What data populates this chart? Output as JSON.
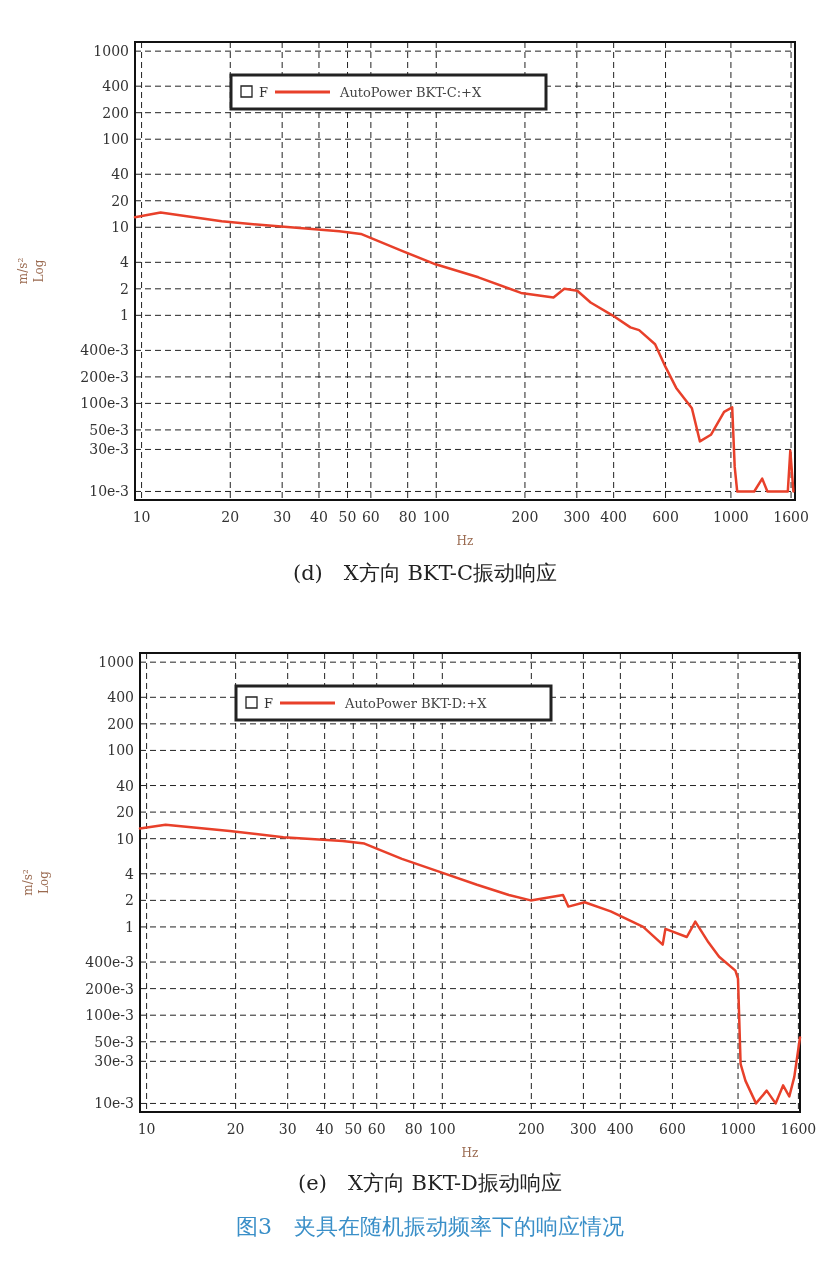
{
  "chart_data": [
    {
      "type": "line",
      "title": "(d)　X方向 BKT-C振动响应",
      "xlabel": "Hz",
      "ylabel": "m/s²\nLog",
      "log": "xy",
      "grid": true,
      "legend": "top left",
      "legend_title": "F",
      "line_style": "solid",
      "xlim": [
        9.5,
        1650
      ],
      "xticks": [
        10,
        20,
        30,
        40,
        50,
        60,
        80,
        100,
        200,
        300,
        400,
        600,
        1000,
        1600
      ],
      "ylim": [
        0.008,
        1270
      ],
      "yticks": [
        1000,
        400,
        200,
        100,
        40,
        20,
        10,
        4,
        2,
        1,
        {
          "value": 0.4,
          "label": "400e-3"
        },
        {
          "value": 0.2,
          "label": "200e-3"
        },
        {
          "value": 0.1,
          "label": "100e-3"
        },
        {
          "value": 0.05,
          "label": "50e-3"
        },
        {
          "value": 0.03,
          "label": "30e-3"
        },
        {
          "value": 0.01,
          "label": "10e-3"
        }
      ],
      "series": [
        {
          "name": "AutoPower BKT-C:+X",
          "color": "#e8402a",
          "x": [
            9.5,
            11.6,
            18.7,
            28.4,
            46.9,
            55.5,
            77.6,
            99.5,
            139,
            194,
            250,
            272,
            301,
            334,
            396,
            456,
            488,
            553,
            600,
            652,
            737,
            785,
            855,
            948,
            1010,
            1030,
            1050,
            1200,
            1277,
            1330,
            1560,
            1590,
            1630
          ],
          "values": [
            13,
            14.7,
            11.7,
            10.3,
            9,
            8.4,
            5.3,
            3.8,
            2.7,
            1.8,
            1.6,
            2,
            1.9,
            1.4,
            1,
            0.73,
            0.68,
            0.47,
            0.26,
            0.15,
            0.088,
            0.037,
            0.044,
            0.08,
            0.09,
            0.019,
            0.01,
            0.01,
            0.014,
            0.01,
            0.01,
            0.029,
            0.01
          ]
        }
      ]
    },
    {
      "type": "line",
      "title": "(e)　X方向 BKT-D振动响应",
      "xlabel": "Hz",
      "ylabel": "m/s²\nLog",
      "log": "xy",
      "grid": true,
      "legend": "top left",
      "legend_title": "F",
      "line_style": "solid",
      "annotations": [
        "图3　夹具在随机振动频率下的响应情况"
      ],
      "xlim": [
        9.5,
        1620
      ],
      "xticks": [
        10,
        20,
        30,
        40,
        50,
        60,
        80,
        100,
        200,
        300,
        400,
        600,
        1000,
        1600
      ],
      "ylim": [
        0.008,
        1270
      ],
      "yticks": [
        1000,
        400,
        200,
        100,
        40,
        20,
        10,
        4,
        2,
        1,
        {
          "value": 0.4,
          "label": "400e-3"
        },
        {
          "value": 0.2,
          "label": "200e-3"
        },
        {
          "value": 0.1,
          "label": "100e-3"
        },
        {
          "value": 0.05,
          "label": "50e-3"
        },
        {
          "value": 0.03,
          "label": "30e-3"
        },
        {
          "value": 0.01,
          "label": "10e-3"
        }
      ],
      "series": [
        {
          "name": "AutoPower BKT-D:+X",
          "color": "#e8402a",
          "x": [
            9.5,
            11.6,
            19.1,
            29,
            46,
            54.5,
            73,
            98,
            131,
            168,
            199,
            256,
            267,
            303,
            371,
            478,
            556,
            568,
            671,
            717,
            794,
            863,
            980,
            1000,
            1020,
            1060,
            1150,
            1250,
            1340,
            1420,
            1490,
            1550,
            1620
          ],
          "values": [
            13,
            14.4,
            12.2,
            10.4,
            9.4,
            8.8,
            5.9,
            4.2,
            3,
            2.3,
            2,
            2.3,
            1.7,
            1.9,
            1.5,
            1,
            0.63,
            0.95,
            0.77,
            1.15,
            0.67,
            0.46,
            0.32,
            0.26,
            0.028,
            0.018,
            0.01,
            0.014,
            0.01,
            0.016,
            0.012,
            0.02,
            0.056
          ]
        }
      ]
    }
  ]
}
